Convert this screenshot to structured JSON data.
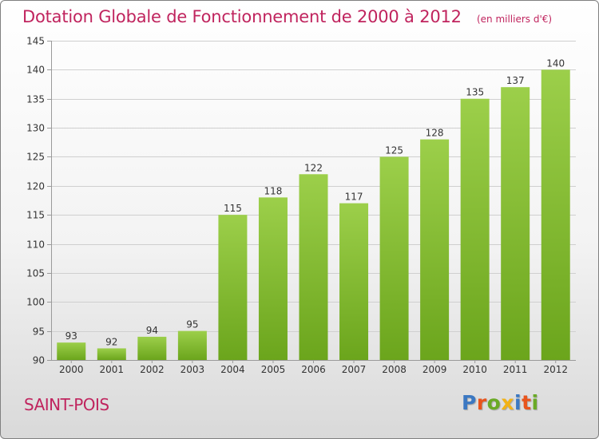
{
  "header": {
    "title": "Dotation Globale de Fonctionnement de 2000 à 2012",
    "subtitle": "(en milliers d'€)"
  },
  "footer": {
    "commune": "SAINT-POIS",
    "logo_text": "Proxiti"
  },
  "colors": {
    "title": "#c0245e",
    "bar_light": "#9ccf4a",
    "bar_dark": "#6ba51c",
    "logo_letters": [
      "#3b78c2",
      "#e8541c",
      "#6aaa26",
      "#f2b216",
      "#3b78c2",
      "#e8541c",
      "#6aaa26"
    ]
  },
  "chart_data": {
    "type": "bar",
    "categories": [
      "2000",
      "2001",
      "2002",
      "2003",
      "2004",
      "2005",
      "2006",
      "2007",
      "2008",
      "2009",
      "2010",
      "2011",
      "2012"
    ],
    "values": [
      93,
      92,
      94,
      95,
      115,
      118,
      122,
      117,
      125,
      128,
      135,
      137,
      140
    ],
    "title": "Dotation Globale de Fonctionnement de 2000 à 2012",
    "subtitle": "(en milliers d'€)",
    "xlabel": "",
    "ylabel": "",
    "ylim": [
      90,
      145
    ],
    "yticks": [
      90,
      95,
      100,
      105,
      110,
      115,
      120,
      125,
      130,
      135,
      140,
      145
    ],
    "grid": true,
    "data_labels": true
  }
}
